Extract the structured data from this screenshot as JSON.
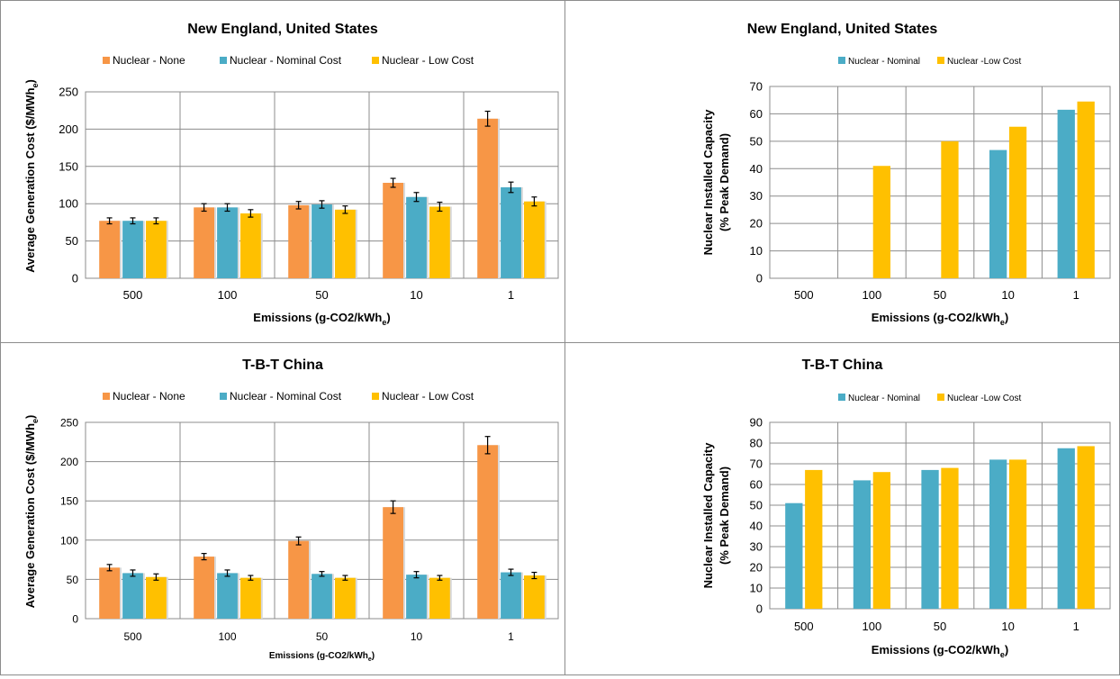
{
  "chart_data": [
    {
      "type": "bar",
      "title": "New England, United States",
      "xlabel": "Emissions (g-CO2/kWh",
      "xlabel_sub": "e",
      "xlabel_end": ")",
      "ylabel": "Average Generation Cost ($/MWh",
      "ylabel_sub": "e",
      "ylabel_end": ")",
      "categories": [
        "500",
        "100",
        "50",
        "10",
        "1"
      ],
      "ylim": [
        0,
        250
      ],
      "yticks": [
        0,
        50,
        100,
        150,
        200,
        250
      ],
      "legend_position": "top",
      "error_bars": true,
      "grid": true,
      "series": [
        {
          "name": "Nuclear - None",
          "color": "#f79646",
          "values": [
            77,
            95,
            98,
            128,
            214
          ],
          "errors": [
            4,
            5,
            5,
            6,
            10
          ]
        },
        {
          "name": "Nuclear - Nominal Cost",
          "color": "#4bacc6",
          "values": [
            77,
            95,
            99,
            109,
            122
          ],
          "errors": [
            4,
            5,
            5,
            6,
            7
          ]
        },
        {
          "name": "Nuclear - Low Cost",
          "color": "#ffc000",
          "values": [
            77,
            87,
            92,
            96,
            103
          ],
          "errors": [
            4,
            5,
            5,
            6,
            6
          ]
        }
      ]
    },
    {
      "type": "bar",
      "title": "New England, United States",
      "xlabel": "Emissions (g-CO2/kWh",
      "xlabel_sub": "e",
      "xlabel_end": ")",
      "ylabel": "Nuclear Installed Capacity",
      "ylabel2": "(% Peak Demand)",
      "categories": [
        "500",
        "100",
        "50",
        "10",
        "1"
      ],
      "ylim": [
        0,
        70
      ],
      "yticks": [
        0,
        10,
        20,
        30,
        40,
        50,
        60,
        70
      ],
      "legend_position": "top",
      "error_bars": false,
      "grid": true,
      "series": [
        {
          "name": "Nuclear - Nominal",
          "color": "#4bacc6",
          "values": [
            0,
            0,
            0,
            46.8,
            61.5
          ]
        },
        {
          "name": "Nuclear -Low Cost",
          "color": "#ffc000",
          "values": [
            0,
            41,
            50,
            55.3,
            64.5
          ]
        }
      ]
    },
    {
      "type": "bar",
      "title": "T-B-T China",
      "xlabel": "Emissions (g-CO2/kWh",
      "xlabel_sub": "e",
      "xlabel_end": ")",
      "ylabel": "Average Generation Cost ($/MWh",
      "ylabel_sub": "e",
      "ylabel_end": ")",
      "categories": [
        "500",
        "100",
        "50",
        "10",
        "1"
      ],
      "ylim": [
        0,
        250
      ],
      "yticks": [
        0,
        50,
        100,
        150,
        200,
        250
      ],
      "legend_position": "top",
      "error_bars": true,
      "grid": true,
      "series": [
        {
          "name": "Nuclear - None",
          "color": "#f79646",
          "values": [
            65,
            79,
            99,
            142,
            221
          ],
          "errors": [
            4,
            4,
            5,
            8,
            11
          ]
        },
        {
          "name": "Nuclear - Nominal Cost",
          "color": "#4bacc6",
          "values": [
            58,
            58,
            57,
            56,
            59
          ],
          "errors": [
            4,
            4,
            3,
            4,
            4
          ]
        },
        {
          "name": "Nuclear - Low Cost",
          "color": "#ffc000",
          "values": [
            53,
            52,
            52,
            52,
            55
          ],
          "errors": [
            4,
            3,
            3,
            3,
            4
          ]
        }
      ]
    },
    {
      "type": "bar",
      "title": "T-B-T China",
      "xlabel": "Emissions (g-CO2/kWh",
      "xlabel_sub": "e",
      "xlabel_end": ")",
      "ylabel": "Nuclear Installed Capacity",
      "ylabel2": "(% Peak Demand)",
      "categories": [
        "500",
        "100",
        "50",
        "10",
        "1"
      ],
      "ylim": [
        0,
        90
      ],
      "yticks": [
        0,
        10,
        20,
        30,
        40,
        50,
        60,
        70,
        80,
        90
      ],
      "legend_position": "top",
      "error_bars": false,
      "grid": true,
      "series": [
        {
          "name": "Nuclear - Nominal",
          "color": "#4bacc6",
          "values": [
            51,
            62,
            67,
            72,
            77.5
          ]
        },
        {
          "name": "Nuclear -Low Cost",
          "color": "#ffc000",
          "values": [
            67,
            66,
            68,
            72,
            78.5
          ]
        }
      ]
    }
  ]
}
